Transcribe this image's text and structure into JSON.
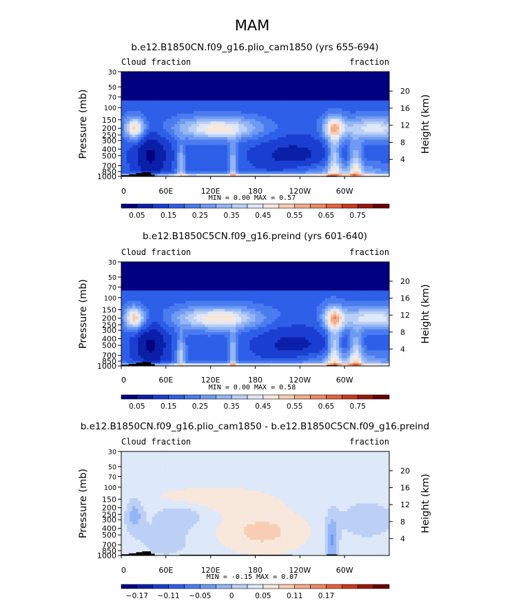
{
  "figure": {
    "title": "MAM"
  },
  "chart_data": [
    {
      "type": "heatmap",
      "title": "b.e12.B1850CN.f09_g16.plio_cam1850 (yrs 655-694)",
      "left_label": "Cloud fraction",
      "right_label": "fraction",
      "ylabel": "Pressure (mb)",
      "y2label": "Height (km)",
      "x_ticks": [
        "0",
        "60E",
        "120E",
        "180",
        "120W",
        "60W"
      ],
      "y_ticks": [
        "30",
        "50",
        "70",
        "100",
        "150",
        "200",
        "250",
        "300",
        "400",
        "500",
        "700",
        "850",
        "1000"
      ],
      "y2_ticks": [
        "20",
        "16",
        "12",
        "8",
        "4"
      ],
      "min_label": "MIN =",
      "min_value": "0.00",
      "max_label": "MAX =",
      "max_value": "0.57",
      "colorbar_labels": [
        "0.05",
        "0.15",
        "0.25",
        "0.35",
        "0.45",
        "0.55",
        "0.65",
        "0.75"
      ],
      "colorbar_colors": [
        "#000080",
        "#0a1fa8",
        "#1a3fd0",
        "#2e5fe8",
        "#4a7cf0",
        "#6e9af2",
        "#94b6f4",
        "#bcd0f5",
        "#dde8f8",
        "#f8e8dc",
        "#f8cdb4",
        "#f4ac8a",
        "#ee8a62",
        "#e4623c",
        "#c83a1c",
        "#9a1808",
        "#6a0000"
      ]
    },
    {
      "type": "heatmap",
      "title": "b.e12.B1850C5CN.f09_g16.preind (yrs 601-640)",
      "left_label": "Cloud fraction",
      "right_label": "fraction",
      "ylabel": "Pressure (mb)",
      "y2label": "Height (km)",
      "x_ticks": [
        "0",
        "60E",
        "120E",
        "180",
        "120W",
        "60W"
      ],
      "y_ticks": [
        "30",
        "50",
        "70",
        "100",
        "150",
        "200",
        "250",
        "300",
        "400",
        "500",
        "700",
        "850",
        "1000"
      ],
      "y2_ticks": [
        "20",
        "16",
        "12",
        "8",
        "4"
      ],
      "min_label": "MIN =",
      "min_value": "0.00",
      "max_label": "MAX =",
      "max_value": "0.58",
      "colorbar_labels": [
        "0.05",
        "0.15",
        "0.25",
        "0.35",
        "0.45",
        "0.55",
        "0.65",
        "0.75"
      ],
      "colorbar_colors": [
        "#000080",
        "#0a1fa8",
        "#1a3fd0",
        "#2e5fe8",
        "#4a7cf0",
        "#6e9af2",
        "#94b6f4",
        "#bcd0f5",
        "#dde8f8",
        "#f8e8dc",
        "#f8cdb4",
        "#f4ac8a",
        "#ee8a62",
        "#e4623c",
        "#c83a1c",
        "#9a1808",
        "#6a0000"
      ]
    },
    {
      "type": "heatmap",
      "title": "b.e12.B1850CN.f09_g16.plio_cam1850 - b.e12.B1850C5CN.f09_g16.preind",
      "left_label": "Cloud fraction",
      "right_label": "fraction",
      "ylabel": "Pressure (mb)",
      "y2label": "Height (km)",
      "x_ticks": [
        "0",
        "60E",
        "120E",
        "180",
        "120W",
        "60W"
      ],
      "y_ticks": [
        "30",
        "50",
        "70",
        "100",
        "150",
        "200",
        "250",
        "300",
        "400",
        "500",
        "700",
        "850",
        "1000"
      ],
      "y2_ticks": [
        "20",
        "16",
        "12",
        "8",
        "4"
      ],
      "min_label": "MIN =",
      "min_value": "-0.15",
      "max_label": "MAX =",
      "max_value": "0.07",
      "colorbar_labels": [
        "−0.17",
        "−0.11",
        "−0.05",
        "0",
        "0.05",
        "0.11",
        "0.17"
      ],
      "colorbar_colors": [
        "#000080",
        "#0a1fa8",
        "#1a3fd0",
        "#2e5fe8",
        "#4a7cf0",
        "#6e9af2",
        "#94b6f4",
        "#bcd0f5",
        "#dde8f8",
        "#f8e8dc",
        "#f8cdb4",
        "#f4ac8a",
        "#ee8a62",
        "#e4623c",
        "#c83a1c",
        "#9a1808",
        "#6a0000"
      ]
    }
  ]
}
